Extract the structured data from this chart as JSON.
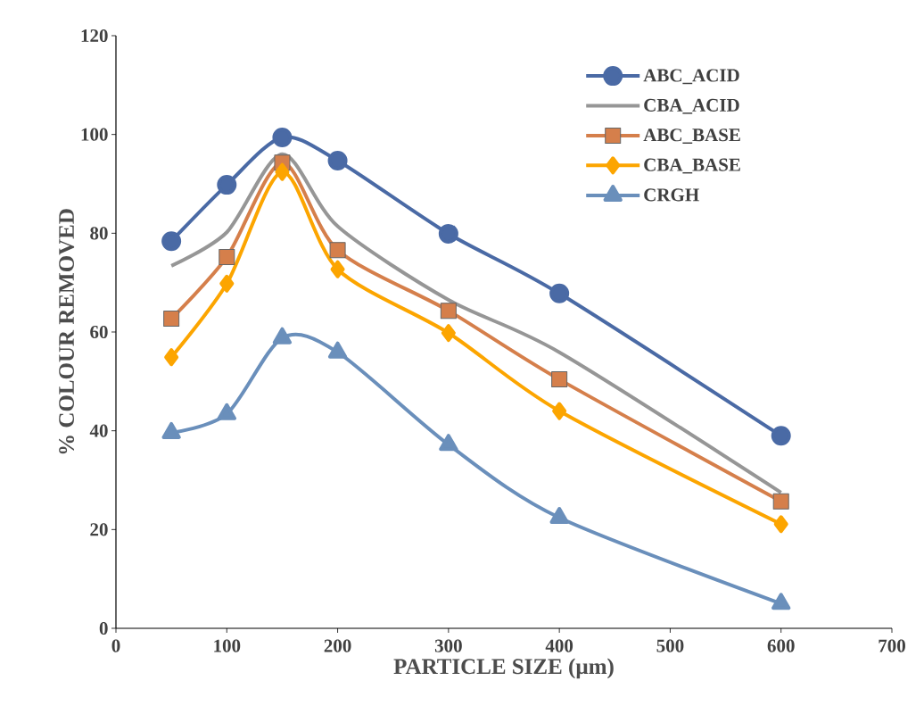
{
  "chart_data": {
    "type": "line",
    "xlabel": "PARTICLE SIZE (µm)",
    "ylabel": "% COLOUR REMOVED",
    "x": [
      50,
      100,
      150,
      200,
      300,
      400,
      600
    ],
    "xlim": [
      0,
      700
    ],
    "xticks": [
      0,
      100,
      200,
      300,
      400,
      500,
      600,
      700
    ],
    "ylim": [
      0,
      120
    ],
    "yticks": [
      0,
      20,
      40,
      60,
      80,
      100,
      120
    ],
    "grid": false,
    "legend": "top right",
    "series": [
      {
        "name": "ABC_ACID",
        "color": "#4a6aa5",
        "marker": "circle",
        "values": [
          78.4,
          89.8,
          99.4,
          94.7,
          79.9,
          67.8,
          39
        ]
      },
      {
        "name": "CBA_ACID",
        "color": "#969696",
        "marker": "none",
        "values": [
          73.4,
          80.2,
          96,
          81.4,
          66.5,
          55.9,
          27.5
        ]
      },
      {
        "name": "ABC_BASE",
        "color": "#d57f4b",
        "marker": "square",
        "values": [
          62.7,
          75.2,
          94.3,
          76.6,
          64.3,
          50.4,
          25.7
        ]
      },
      {
        "name": "CBA_BASE",
        "color": "#fca500",
        "marker": "diamond",
        "values": [
          54.9,
          69.8,
          92.4,
          72.7,
          59.8,
          44,
          21.1
        ]
      },
      {
        "name": "CRGH",
        "color": "#6a8fbb",
        "marker": "triangle",
        "values": [
          39.6,
          43.4,
          58.8,
          55.9,
          37.2,
          22.4,
          5
        ]
      }
    ]
  }
}
